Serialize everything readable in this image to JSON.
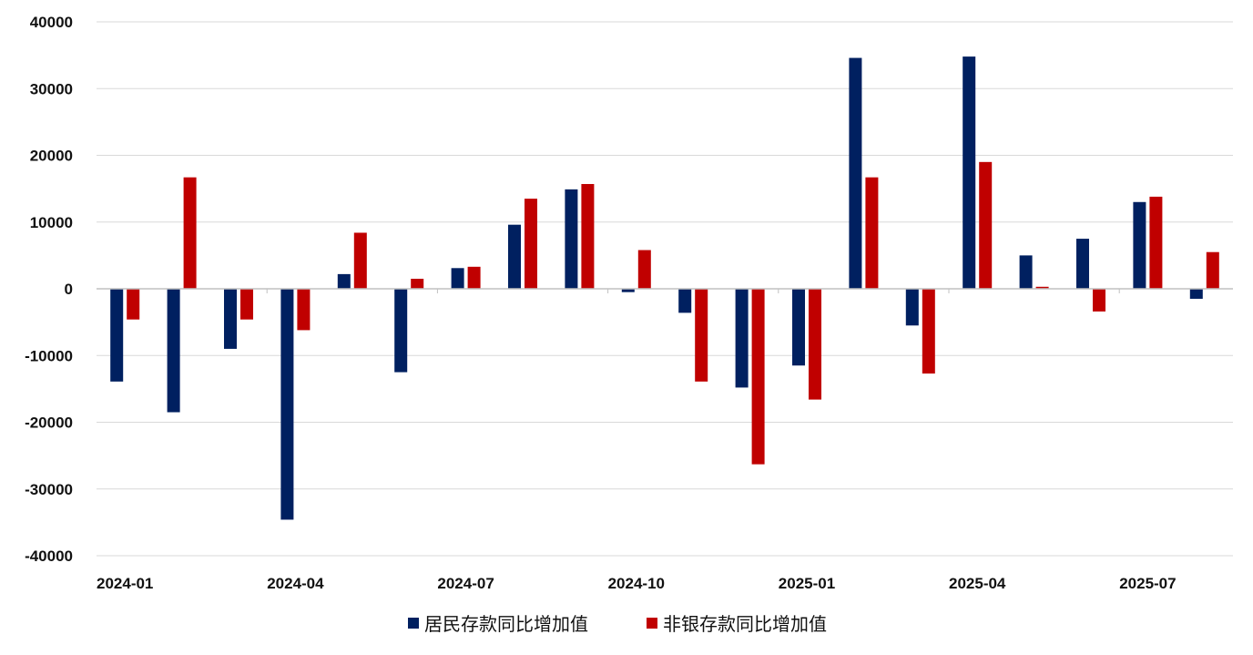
{
  "chart_data": {
    "type": "bar",
    "categories": [
      "2024-01",
      "2024-02",
      "2024-03",
      "2024-04",
      "2024-05",
      "2024-06",
      "2024-07",
      "2024-08",
      "2024-09",
      "2024-10",
      "2024-11",
      "2024-12",
      "2025-01",
      "2025-02",
      "2025-03",
      "2025-04",
      "2025-05",
      "2025-06",
      "2025-07",
      "2025-08"
    ],
    "x_tick_labels": [
      "2024-01",
      "2024-04",
      "2024-07",
      "2024-10",
      "2025-01",
      "2025-04",
      "2025-07"
    ],
    "y_ticks": [
      -40000,
      -30000,
      -20000,
      -10000,
      0,
      10000,
      20000,
      30000,
      40000
    ],
    "ylim": [
      -40000,
      40000
    ],
    "grid": true,
    "legend_position": "bottom",
    "series": [
      {
        "name": "居民存款同比增加值",
        "color": "#002060",
        "values": [
          -13900,
          -18500,
          -9000,
          -34600,
          2200,
          -12500,
          3100,
          9600,
          14900,
          -500,
          -3600,
          -14800,
          -11500,
          34600,
          -5500,
          34800,
          5000,
          7500,
          13000,
          -1500
        ]
      },
      {
        "name": "非银存款同比增加值",
        "color": "#C00000",
        "values": [
          -4600,
          16700,
          -4600,
          -6200,
          8400,
          1500,
          3300,
          13500,
          15700,
          5800,
          -13900,
          -26300,
          -16600,
          16700,
          -12700,
          19000,
          300,
          -3400,
          13800,
          5500
        ]
      }
    ]
  }
}
